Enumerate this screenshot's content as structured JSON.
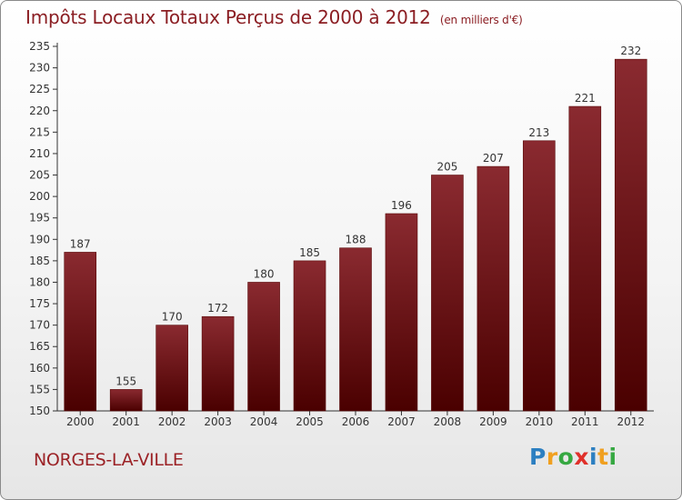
{
  "title": "Impôts Locaux Totaux Perçus de 2000 à 2012",
  "unit_note": "(en milliers d'€)",
  "commune": "NORGES-LA-VILLE",
  "brand": "Proxiti",
  "colors": {
    "title": "#8b1e23",
    "bar_top": "#8a2a30",
    "bar_bottom": "#4a0000",
    "axis": "#333333",
    "grid": "#dddddd",
    "logo_P": "#2c7fc1",
    "logo_r": "#f0a020",
    "logo_o": "#36a842",
    "logo_x": "#e0302a",
    "logo_i": "#2c7fc1",
    "logo_t": "#f0a020",
    "logo_i2": "#36a842"
  },
  "chart_data": {
    "type": "bar",
    "title": "Impôts Locaux Totaux Perçus de 2000 à 2012",
    "xlabel": "",
    "ylabel": "",
    "categories": [
      "2000",
      "2001",
      "2002",
      "2003",
      "2004",
      "2005",
      "2006",
      "2007",
      "2008",
      "2009",
      "2010",
      "2011",
      "2012"
    ],
    "values": [
      187,
      155,
      170,
      172,
      180,
      185,
      188,
      196,
      205,
      207,
      213,
      221,
      232
    ],
    "ylim": [
      150,
      235
    ],
    "yticks": [
      150,
      155,
      160,
      165,
      170,
      175,
      180,
      185,
      190,
      195,
      200,
      205,
      210,
      215,
      220,
      225,
      230,
      235
    ],
    "grid": false,
    "legend": "none"
  }
}
